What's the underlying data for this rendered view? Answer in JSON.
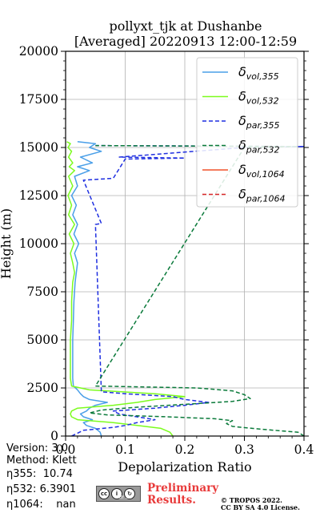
{
  "chart_data": {
    "type": "line",
    "title": "pollyxt_tjk at Dushanbe",
    "subtitle": "[Averaged] 20220913 12:00-12:59",
    "xlabel": "Depolarization Ratio",
    "ylabel": "Height (m)",
    "xlim": [
      0,
      0.4
    ],
    "ylim": [
      0,
      20000
    ],
    "x_ticks": [
      "0.0",
      "0.1",
      "0.2",
      "0.3",
      "0.4"
    ],
    "y_ticks": [
      "0",
      "2500",
      "5000",
      "7500",
      "10000",
      "12500",
      "15000",
      "17500",
      "20000"
    ],
    "grid": true,
    "legend_position": "top-right",
    "series": [
      {
        "name": "vol,355",
        "color": "#4a9fe8",
        "style": "solid",
        "points": [
          [
            0.06,
            0
          ],
          [
            0.058,
            200
          ],
          [
            0.05,
            400
          ],
          [
            0.035,
            550
          ],
          [
            0.03,
            700
          ],
          [
            0.045,
            850
          ],
          [
            0.03,
            1000
          ],
          [
            0.025,
            1150
          ],
          [
            0.035,
            1300
          ],
          [
            0.04,
            1450
          ],
          [
            0.05,
            1600
          ],
          [
            0.07,
            1750
          ],
          [
            0.04,
            1900
          ],
          [
            0.03,
            2050
          ],
          [
            0.025,
            2200
          ],
          [
            0.02,
            2400
          ],
          [
            0.013,
            2600
          ],
          [
            0.012,
            3000
          ],
          [
            0.012,
            4000
          ],
          [
            0.012,
            5000
          ],
          [
            0.013,
            6000
          ],
          [
            0.014,
            7000
          ],
          [
            0.016,
            8000
          ],
          [
            0.018,
            8500
          ],
          [
            0.02,
            9000
          ],
          [
            0.015,
            9500
          ],
          [
            0.022,
            10000
          ],
          [
            0.014,
            10500
          ],
          [
            0.02,
            11000
          ],
          [
            0.012,
            11500
          ],
          [
            0.018,
            12000
          ],
          [
            0.01,
            12500
          ],
          [
            0.02,
            13000
          ],
          [
            0.015,
            13500
          ],
          [
            0.04,
            13800
          ],
          [
            0.02,
            14000
          ],
          [
            0.045,
            14200
          ],
          [
            0.025,
            14500
          ],
          [
            0.06,
            14800
          ],
          [
            0.04,
            15000
          ],
          [
            0.05,
            15200
          ],
          [
            0.02,
            15300
          ]
        ]
      },
      {
        "name": "vol,532",
        "color": "#7cfc1e",
        "style": "solid",
        "points": [
          [
            0.18,
            0
          ],
          [
            0.175,
            200
          ],
          [
            0.16,
            400
          ],
          [
            0.12,
            550
          ],
          [
            0.08,
            700
          ],
          [
            0.02,
            850
          ],
          [
            0.01,
            1000
          ],
          [
            0.008,
            1150
          ],
          [
            0.01,
            1300
          ],
          [
            0.02,
            1450
          ],
          [
            0.08,
            1600
          ],
          [
            0.12,
            1750
          ],
          [
            0.15,
            1900
          ],
          [
            0.2,
            2050
          ],
          [
            0.15,
            2200
          ],
          [
            0.04,
            2400
          ],
          [
            0.01,
            2600
          ],
          [
            0.008,
            3000
          ],
          [
            0.008,
            4000
          ],
          [
            0.008,
            5000
          ],
          [
            0.01,
            6000
          ],
          [
            0.01,
            7000
          ],
          [
            0.012,
            8000
          ],
          [
            0.015,
            8500
          ],
          [
            0.012,
            9000
          ],
          [
            0.008,
            9500
          ],
          [
            0.014,
            10000
          ],
          [
            0.006,
            10500
          ],
          [
            0.015,
            11000
          ],
          [
            0.005,
            11500
          ],
          [
            0.01,
            12000
          ],
          [
            0.004,
            12500
          ],
          [
            0.012,
            13000
          ],
          [
            0.005,
            13500
          ],
          [
            0.015,
            13800
          ],
          [
            0.006,
            14000
          ],
          [
            0.012,
            14200
          ],
          [
            0.005,
            14500
          ],
          [
            0.01,
            14800
          ],
          [
            0.004,
            15000
          ],
          [
            0.008,
            15200
          ],
          [
            0.002,
            15300
          ]
        ]
      },
      {
        "name": "par,355",
        "color": "#1f2fe0",
        "style": "dashed",
        "points": [
          [
            0.01,
            0
          ],
          [
            0.02,
            150
          ],
          [
            0.03,
            300
          ],
          [
            0.08,
            450
          ],
          [
            0.1,
            550
          ],
          [
            0.12,
            700
          ],
          [
            0.15,
            850
          ],
          [
            0.12,
            1000
          ],
          [
            0.09,
            1150
          ],
          [
            0.08,
            1300
          ],
          [
            0.15,
            1450
          ],
          [
            0.2,
            1600
          ],
          [
            0.24,
            1750
          ],
          [
            0.2,
            1900
          ],
          [
            0.18,
            2050
          ],
          [
            0.1,
            2200
          ],
          [
            0.06,
            2300
          ],
          [
            0.05,
            11000
          ],
          [
            0.06,
            11050
          ],
          [
            0.03,
            13300
          ],
          [
            0.08,
            13400
          ],
          [
            0.1,
            14400
          ],
          [
            0.2,
            14450
          ],
          [
            0.09,
            14500
          ],
          [
            0.3,
            15000
          ],
          [
            0.4,
            15050
          ],
          [
            0.05,
            15100
          ]
        ]
      },
      {
        "name": "par,532",
        "color": "#0a7a3a",
        "style": "dashed",
        "points": [
          [
            0.4,
            0
          ],
          [
            0.39,
            200
          ],
          [
            0.33,
            350
          ],
          [
            0.28,
            500
          ],
          [
            0.27,
            650
          ],
          [
            0.28,
            800
          ],
          [
            0.25,
            900
          ],
          [
            0.17,
            1000
          ],
          [
            0.07,
            1100
          ],
          [
            0.04,
            1200
          ],
          [
            0.06,
            1350
          ],
          [
            0.12,
            1500
          ],
          [
            0.2,
            1650
          ],
          [
            0.28,
            1800
          ],
          [
            0.31,
            1950
          ],
          [
            0.3,
            2150
          ],
          [
            0.28,
            2350
          ],
          [
            0.22,
            2500
          ],
          [
            0.05,
            2600
          ],
          [
            0.3,
            15000
          ],
          [
            0.39,
            15050
          ],
          [
            0.05,
            15100
          ]
        ]
      },
      {
        "name": "vol,1064",
        "color": "#f0522a",
        "style": "solid",
        "points": []
      },
      {
        "name": "par,1064",
        "color": "#d62728",
        "style": "dashed",
        "points": []
      }
    ]
  },
  "info": {
    "version": "Version: 3.0",
    "method": "Method: Klett",
    "eta355": "η355:  10.74",
    "eta532": "η532: 6.3901",
    "eta1064": "η1064:    nan"
  },
  "footer": {
    "preliminary_line1": "Preliminary",
    "preliminary_line2": "Results.",
    "copyright_line1": "© TROPOS 2022.",
    "copyright_line2": "CC BY SA 4.0 License.",
    "cc_badge_text": "BY SA"
  },
  "colors": {
    "grid": "#b0b0b0",
    "preliminary": "#e83a3a"
  }
}
